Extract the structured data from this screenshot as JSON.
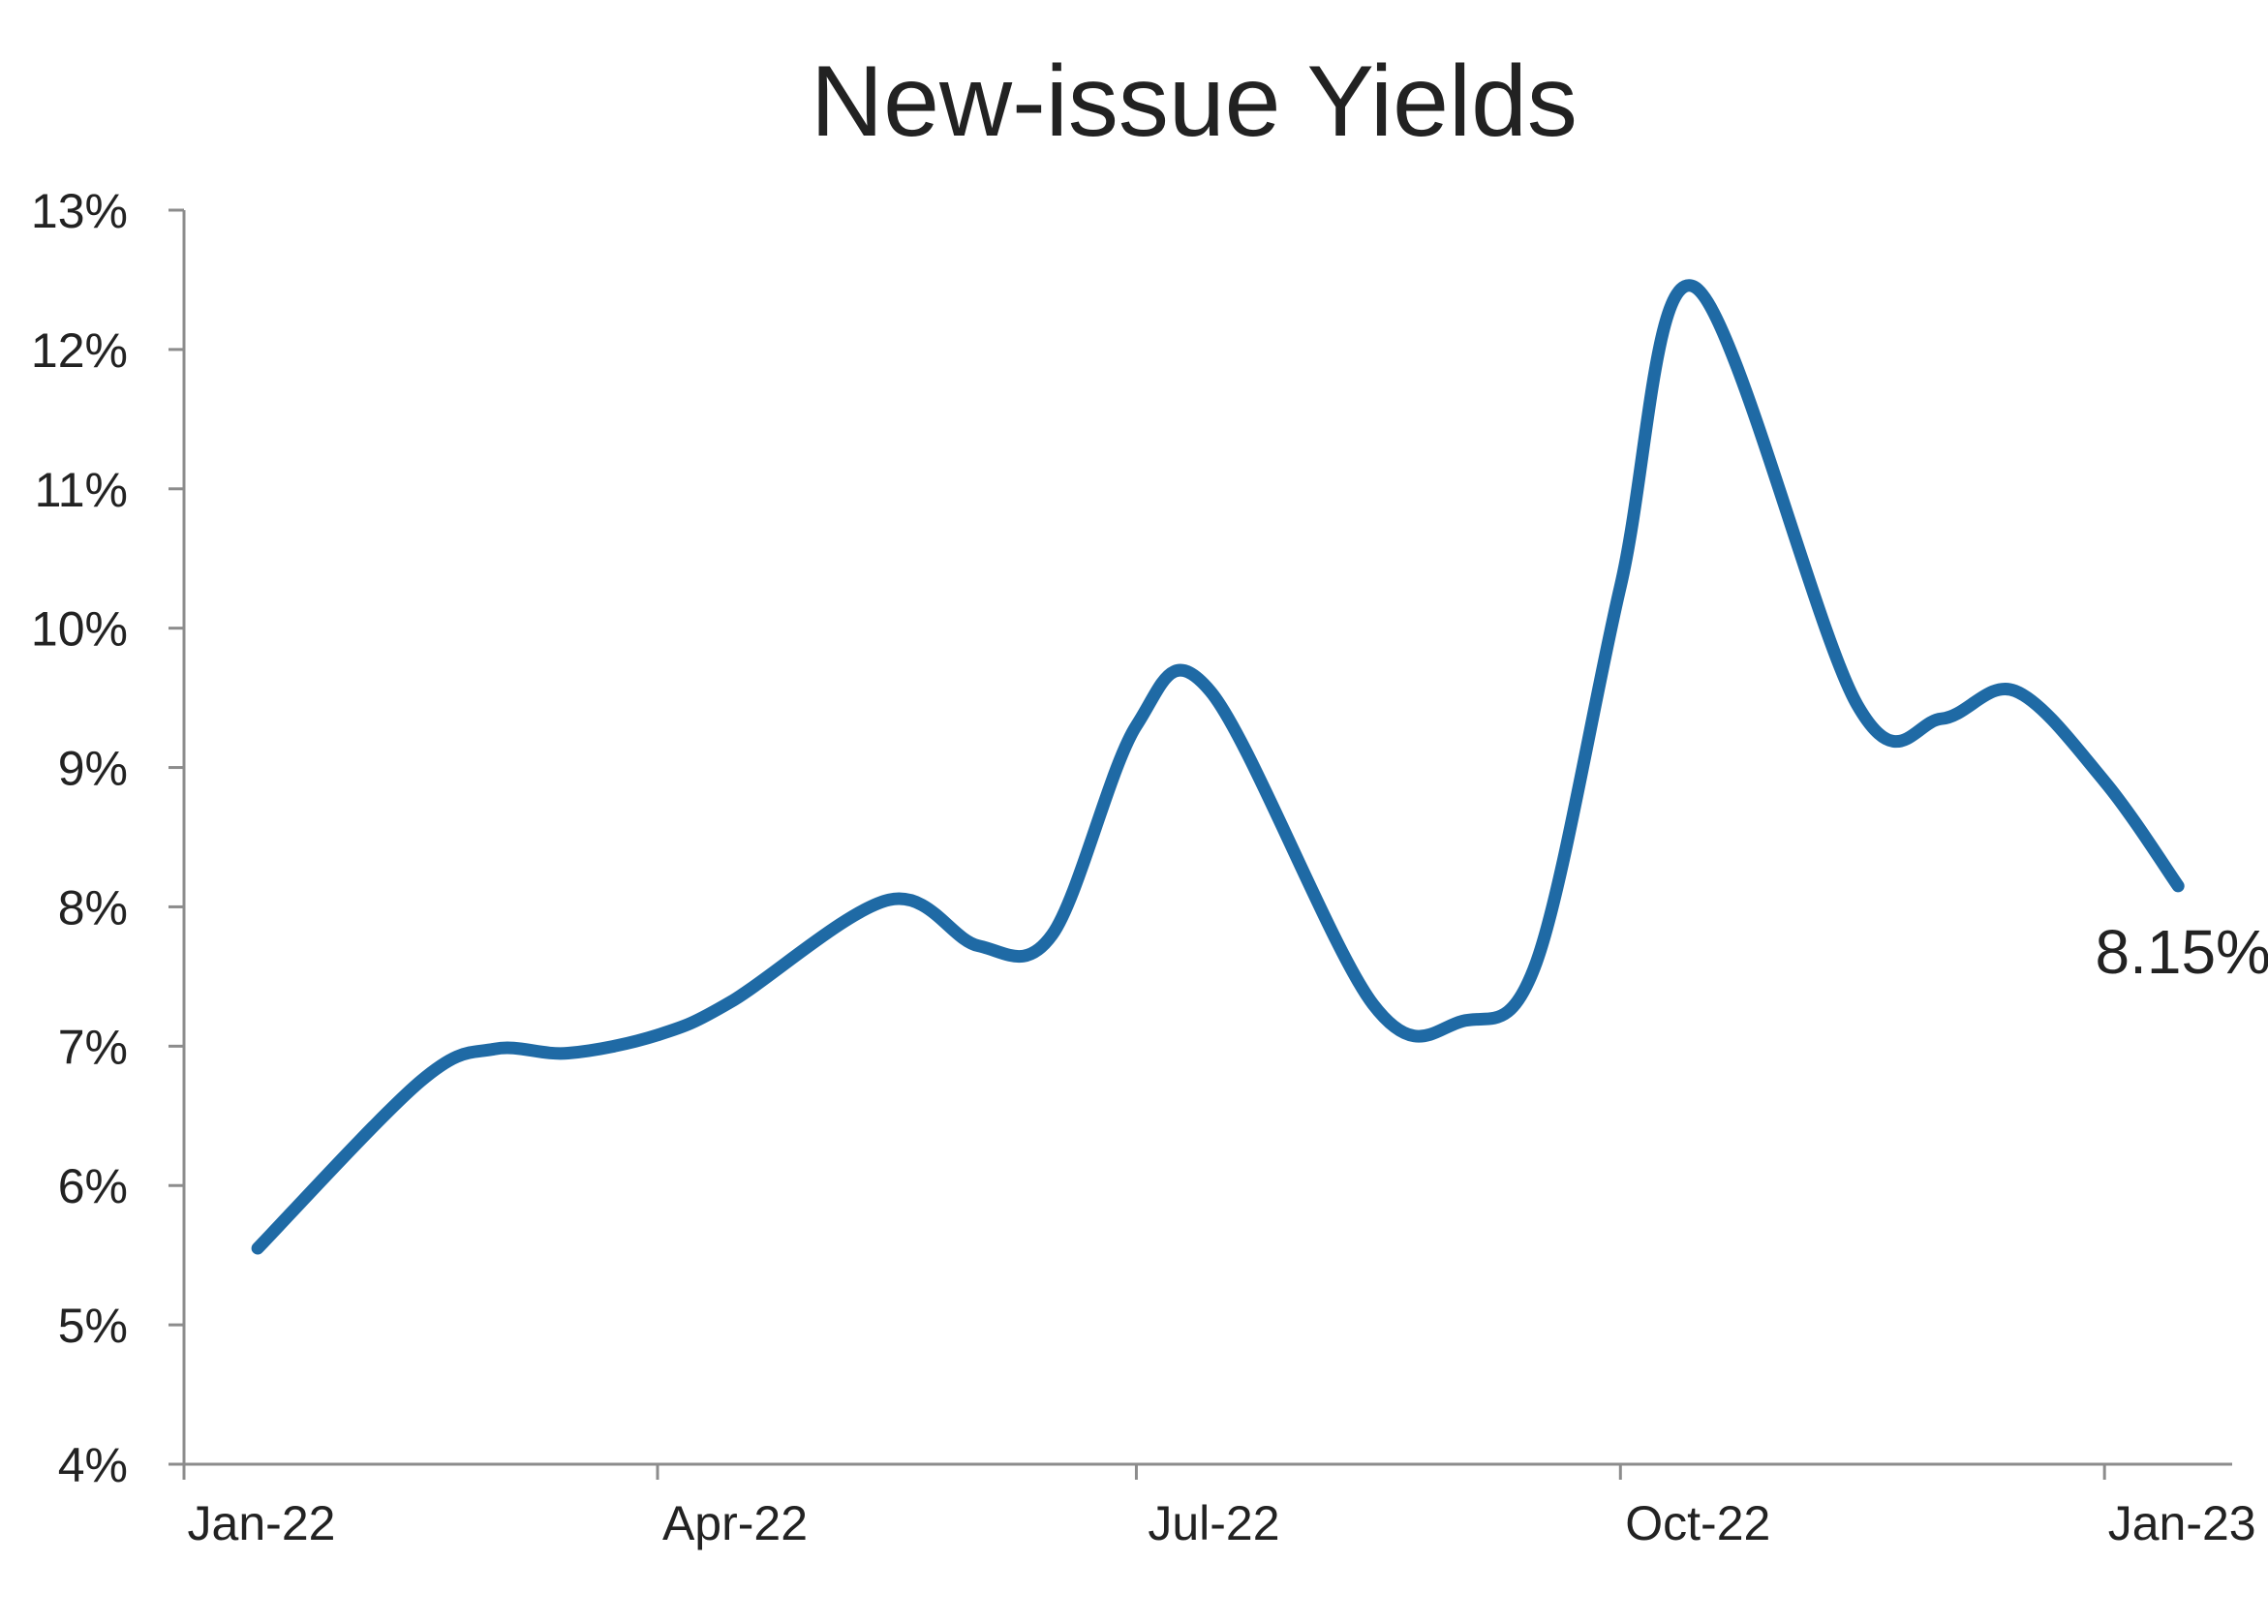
{
  "chart_data": {
    "type": "line",
    "title": "New-issue Yields",
    "xlabel": "",
    "ylabel": "",
    "x_ticks": [
      "Jan-22",
      "Apr-22",
      "Jul-22",
      "Oct-22",
      "Jan-23"
    ],
    "y_ticks": [
      "4%",
      "5%",
      "6%",
      "7%",
      "8%",
      "9%",
      "10%",
      "11%",
      "12%",
      "13%"
    ],
    "ylim": [
      4,
      13
    ],
    "xlim": [
      "2022-01-01",
      "2023-01-01"
    ],
    "grid": false,
    "legend": "none",
    "series": [
      {
        "color": "#1f6aa5",
        "points": [
          {
            "x": "2022-01-15",
            "y": 5.55
          },
          {
            "x": "2022-02-15",
            "y": 6.75
          },
          {
            "x": "2022-03-01",
            "y": 6.98
          },
          {
            "x": "2022-03-15",
            "y": 6.95
          },
          {
            "x": "2022-04-01",
            "y": 7.08
          },
          {
            "x": "2022-04-15",
            "y": 7.32
          },
          {
            "x": "2022-05-15",
            "y": 8.05
          },
          {
            "x": "2022-06-01",
            "y": 7.72
          },
          {
            "x": "2022-06-15",
            "y": 7.8
          },
          {
            "x": "2022-07-01",
            "y": 9.3
          },
          {
            "x": "2022-07-15",
            "y": 9.55
          },
          {
            "x": "2022-08-15",
            "y": 7.3
          },
          {
            "x": "2022-09-01",
            "y": 7.18
          },
          {
            "x": "2022-09-15",
            "y": 7.6
          },
          {
            "x": "2022-10-01",
            "y": 10.3
          },
          {
            "x": "2022-10-15",
            "y": 12.45
          },
          {
            "x": "2022-11-15",
            "y": 9.45
          },
          {
            "x": "2022-12-01",
            "y": 9.35
          },
          {
            "x": "2022-12-15",
            "y": 9.55
          },
          {
            "x": "2023-01-01",
            "y": 8.9
          },
          {
            "x": "2023-01-15",
            "y": 8.15
          }
        ]
      }
    ],
    "annotations": [
      {
        "x": "2023-01-15",
        "y": 8.15,
        "text": "8.15%"
      }
    ]
  }
}
